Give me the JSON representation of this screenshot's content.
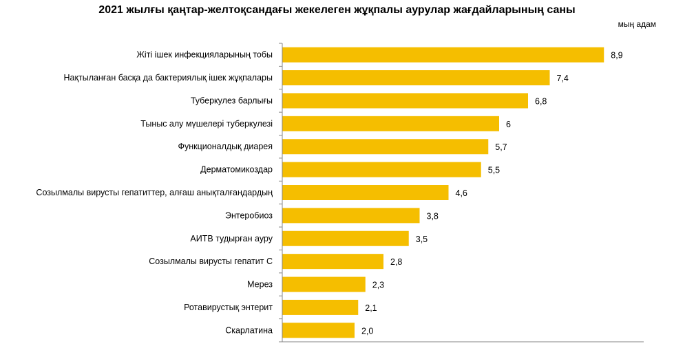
{
  "chart_data": {
    "type": "bar",
    "orientation": "horizontal",
    "title": "2021 жылғы қаңтар-желтоқсандағы жекелеген жұқпалы аурулар жағдайларының саны",
    "unit_label": "мың адам",
    "categories": [
      "Жіті ішек инфекцияларының тобы",
      "Нақтыланған басқа да бактериялық ішек жұқпалары",
      "Туберкулез барлығы",
      "Тыныс алу мүшелері туберкулезі",
      "Функционалдық диарея",
      "Дерматомикоздар",
      "Созылмалы вирусты гепатиттер, алғаш анықталғандардың",
      "Энтеробиоз",
      "АИТВ тудырған ауру",
      "Созылмалы вирусты гепатит С",
      "Мерез",
      "Ротавирустық энтерит",
      "Скарлатина"
    ],
    "values": [
      8.9,
      7.4,
      6.8,
      6,
      5.7,
      5.5,
      4.6,
      3.8,
      3.5,
      2.8,
      2.3,
      2.1,
      2.0
    ],
    "value_labels": [
      "8,9",
      "7,4",
      "6,8",
      "6",
      "5,7",
      "5,5",
      "4,6",
      "3,8",
      "3,5",
      "2,8",
      "2,3",
      "2,1",
      "2,0"
    ],
    "xlim": [
      0,
      10
    ],
    "grid": false,
    "bar_color": "#F5BE00",
    "xlabel": "",
    "ylabel": ""
  }
}
